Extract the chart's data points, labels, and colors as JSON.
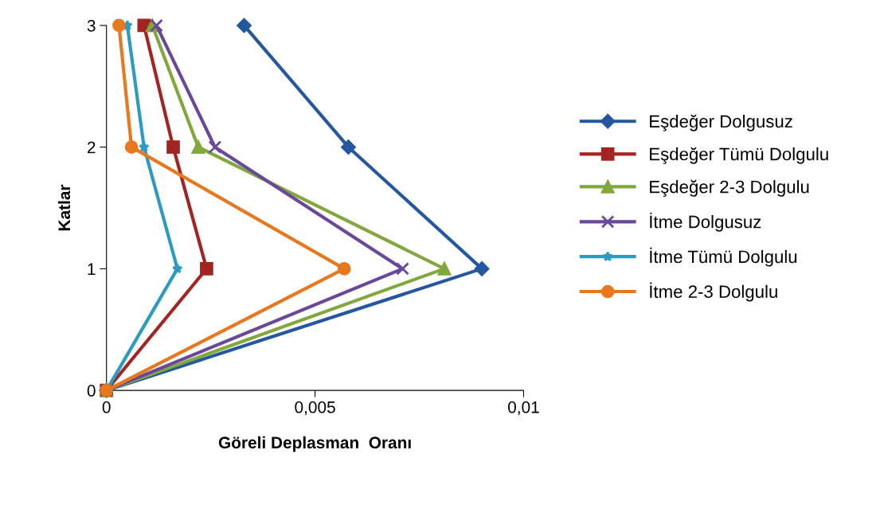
{
  "chart_data": {
    "type": "line",
    "xlabel": "Göreli Deplasman  Oranı",
    "ylabel": "Katlar",
    "xlim": [
      0,
      0.01
    ],
    "xticks": [
      0,
      {
        "value": 0.005,
        "label": "0,005"
      },
      {
        "value": 0.01,
        "label": "0,01"
      }
    ],
    "ylim": [
      0,
      3
    ],
    "yticks": [
      0,
      1,
      2,
      3
    ],
    "grid": false,
    "legend": "right",
    "line_style": "solid",
    "series": [
      {
        "name": "Eşdeğer Dolgusuz",
        "color": "#2457a0",
        "marker": "diamond",
        "x": [
          0,
          0.009,
          0.0058,
          0.0033
        ],
        "values": [
          0,
          1,
          2,
          3
        ]
      },
      {
        "name": "Eşdeğer Tümü Dolgulu",
        "color": "#a32420",
        "marker": "square",
        "x": [
          0,
          0.0024,
          0.0016,
          0.0009
        ],
        "values": [
          0,
          1,
          2,
          3
        ]
      },
      {
        "name": "Eşdeğer 2-3 Dolgulu",
        "color": "#80a83c",
        "marker": "triangle",
        "x": [
          0,
          0.0081,
          0.0022,
          0.0011
        ],
        "values": [
          0,
          1,
          2,
          3
        ]
      },
      {
        "name": "İtme Dolgusuz",
        "color": "#6a4899",
        "marker": "cross",
        "x": [
          0,
          0.0071,
          0.0026,
          0.0012
        ],
        "values": [
          0,
          1,
          2,
          3
        ]
      },
      {
        "name": "İtme Tümü Dolgulu",
        "color": "#2c9bc2",
        "marker": "star",
        "x": [
          0,
          0.0017,
          0.0009,
          0.0005
        ],
        "values": [
          0,
          1,
          2,
          3
        ]
      },
      {
        "name": "İtme 2-3 Dolgulu",
        "color": "#e8781e",
        "marker": "circle",
        "x": [
          0,
          0.0057,
          0.0006,
          0.0003
        ],
        "values": [
          0,
          1,
          2,
          3
        ]
      }
    ]
  }
}
